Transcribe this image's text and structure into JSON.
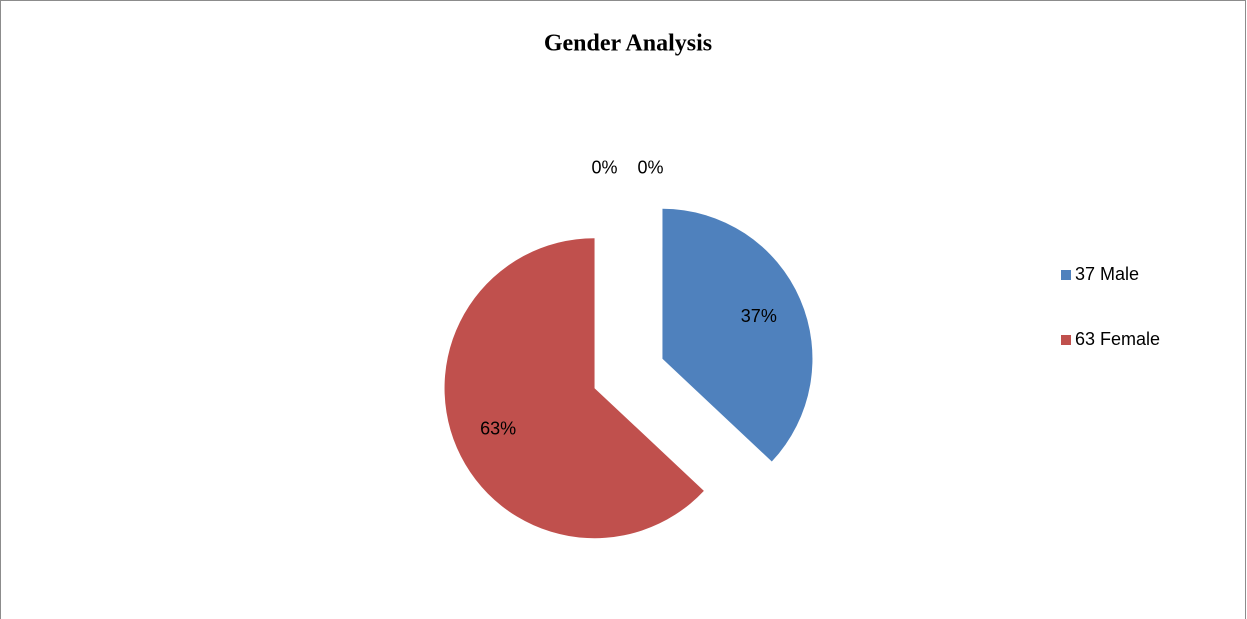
{
  "chart_data": {
    "type": "pie",
    "title": "Gender Analysis",
    "categories": [
      "37 Male",
      "63 Female",
      null,
      null
    ],
    "values": [
      37,
      63,
      0,
      0
    ],
    "value_labels": [
      "37%",
      "63%",
      "0%",
      "0%"
    ],
    "colors": [
      "#4f81bd",
      "#c0504d"
    ],
    "legend": "right"
  }
}
